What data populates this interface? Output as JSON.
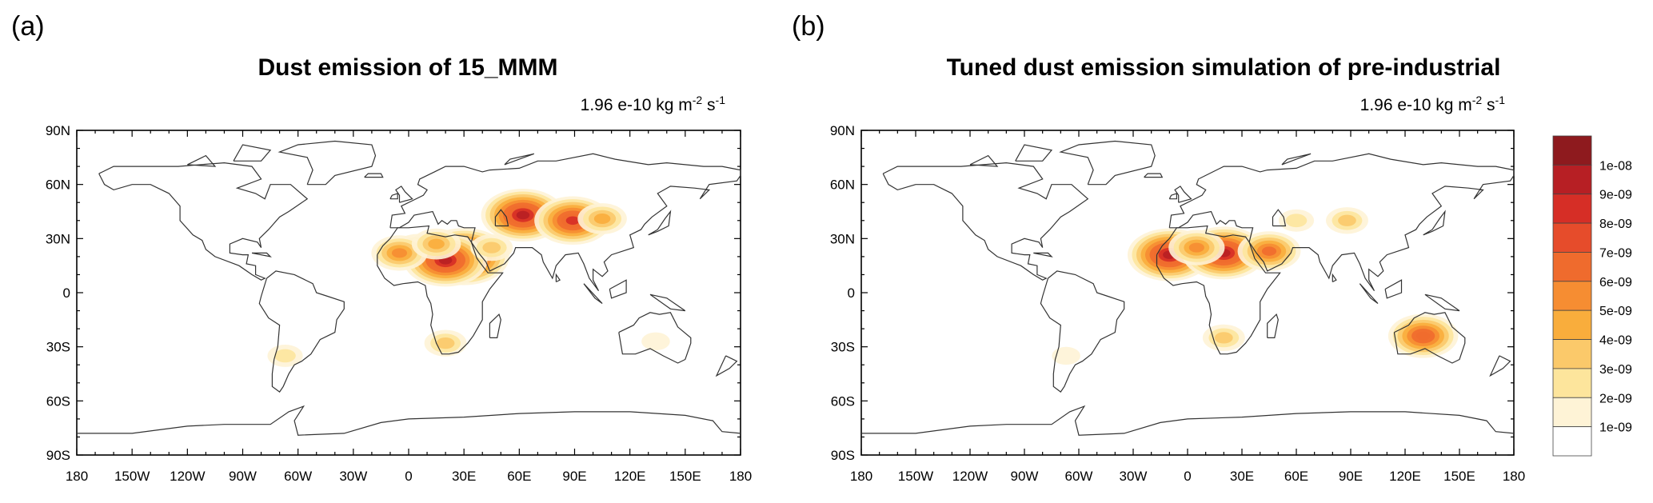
{
  "panels": [
    {
      "letter": "(a)",
      "title": "Dust emission of 15_MMM",
      "units": {
        "base": "1.96 e-10 kg m",
        "exp1": "-2",
        "mid": " s",
        "exp2": "-1"
      }
    },
    {
      "letter": "(b)",
      "title": "Tuned dust emission simulation of pre-industrial",
      "units": {
        "base": "1.96 e-10 kg m",
        "exp1": "-2",
        "mid": " s",
        "exp2": "-1"
      }
    }
  ],
  "axes": {
    "lat_labels": [
      "90N",
      "60N",
      "30N",
      "0",
      "30S",
      "60S",
      "90S"
    ],
    "lon_labels": [
      "180",
      "150W",
      "120W",
      "90W",
      "60W",
      "30W",
      "0",
      "30E",
      "60E",
      "90E",
      "120E",
      "150E",
      "180"
    ]
  },
  "colorbar": {
    "labels": [
      "1e-08",
      "9e-09",
      "8e-09",
      "7e-09",
      "6e-09",
      "5e-09",
      "4e-09",
      "3e-09",
      "2e-09",
      "1e-09"
    ],
    "colors": [
      "#8e1a1e",
      "#b71f24",
      "#d62e26",
      "#e64c2b",
      "#ef6b2d",
      "#f68d32",
      "#f9ad3c",
      "#fbc96a",
      "#fde59c",
      "#fef3d6",
      "#ffffff"
    ]
  },
  "chart_data": [
    {
      "type": "heatmap",
      "title": "Dust emission of 15_MMM",
      "xlim": [
        -180,
        180
      ],
      "ylim": [
        -90,
        90
      ],
      "units": "1.96e-10 kg m-2 s-1",
      "blobs": [
        {
          "lon": 5,
          "lat": 24,
          "value": 4.5e-09
        },
        {
          "lon": 30,
          "lat": 20,
          "value": 1e-08
        },
        {
          "lon": 20,
          "lat": 18,
          "value": 9e-09
        },
        {
          "lon": -5,
          "lat": 22,
          "value": 5e-09
        },
        {
          "lon": 15,
          "lat": 27,
          "value": 4e-09
        },
        {
          "lon": 45,
          "lat": 25,
          "value": 3e-09
        },
        {
          "lon": 62,
          "lat": 43,
          "value": 9e-09
        },
        {
          "lon": 89,
          "lat": 40,
          "value": 8e-09
        },
        {
          "lon": 105,
          "lat": 41,
          "value": 4e-09
        },
        {
          "lon": -67,
          "lat": -35,
          "value": 2e-09
        },
        {
          "lon": 20,
          "lat": -28,
          "value": 3e-09
        },
        {
          "lon": 134,
          "lat": -27,
          "value": 1.5e-09
        }
      ]
    },
    {
      "type": "heatmap",
      "title": "Tuned dust emission simulation of pre-industrial",
      "xlim": [
        -180,
        180
      ],
      "ylim": [
        -90,
        90
      ],
      "units": "1.96e-10 kg m-2 s-1",
      "blobs": [
        {
          "lon": -10,
          "lat": 21,
          "value": 9e-09
        },
        {
          "lon": 20,
          "lat": 22,
          "value": 9e-09
        },
        {
          "lon": 5,
          "lat": 25,
          "value": 5e-09
        },
        {
          "lon": 45,
          "lat": 23,
          "value": 6e-09
        },
        {
          "lon": 60,
          "lat": 40,
          "value": 2.5e-09
        },
        {
          "lon": 88,
          "lat": 40,
          "value": 3e-09
        },
        {
          "lon": 130,
          "lat": -24,
          "value": 7e-09
        },
        {
          "lon": 20,
          "lat": -25,
          "value": 3e-09
        },
        {
          "lon": -67,
          "lat": -35,
          "value": 1.5e-09
        }
      ]
    }
  ]
}
